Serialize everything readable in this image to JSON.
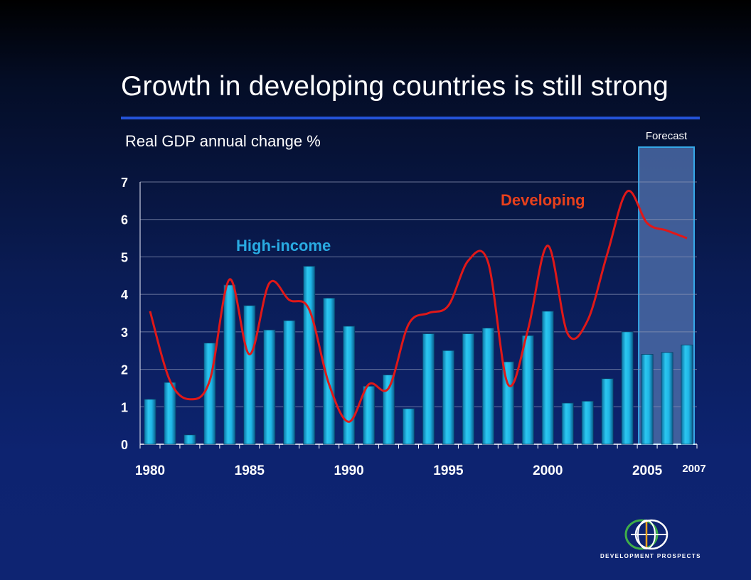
{
  "slide": {
    "title": "Growth in developing countries is still strong",
    "subtitle": "Real GDP annual change %"
  },
  "logo": {
    "text": "DEVELOPMENT PROSPECTS",
    "icon": "globe-icon"
  },
  "colors": {
    "bar": "#1fb6e6",
    "line": "#e01818",
    "developing_label": "#e8401c",
    "high_income_label": "#29abe2",
    "forecast_fill": "#4a6aa6",
    "forecast_border": "#35a8e8",
    "title_rule": "#2453d9"
  },
  "chart_data": {
    "type": "bar",
    "ylim": [
      0,
      7
    ],
    "yticks": [
      "0",
      "1",
      "2",
      "3",
      "4",
      "5",
      "6",
      "7"
    ],
    "xtick_labels": [
      "1980",
      "1985",
      "1990",
      "1995",
      "2000",
      "2005",
      "2007"
    ],
    "categories": [
      1980,
      1981,
      1982,
      1983,
      1984,
      1985,
      1986,
      1987,
      1988,
      1989,
      1990,
      1991,
      1992,
      1993,
      1994,
      1995,
      1996,
      1997,
      1998,
      1999,
      2000,
      2001,
      2002,
      2003,
      2004,
      2005,
      2006,
      2007
    ],
    "grid": true,
    "forecast_label": "Forecast",
    "forecast_from": 2005,
    "series": [
      {
        "name": "High-income",
        "kind": "bar",
        "values": [
          1.2,
          1.65,
          0.25,
          2.7,
          4.25,
          3.7,
          3.05,
          3.3,
          4.75,
          3.9,
          3.15,
          1.55,
          1.85,
          0.95,
          2.95,
          2.5,
          2.95,
          3.1,
          2.2,
          2.9,
          3.55,
          1.1,
          1.15,
          1.75,
          3.0,
          2.4,
          2.45,
          2.65
        ]
      },
      {
        "name": "Developing",
        "kind": "line",
        "values": [
          3.55,
          1.7,
          1.2,
          1.7,
          4.4,
          2.4,
          4.3,
          3.85,
          3.6,
          1.6,
          0.6,
          1.6,
          1.5,
          3.2,
          3.5,
          3.7,
          4.9,
          4.85,
          1.6,
          3.05,
          5.3,
          2.95,
          3.3,
          5.1,
          6.75,
          5.9,
          5.7,
          5.5
        ]
      }
    ]
  }
}
